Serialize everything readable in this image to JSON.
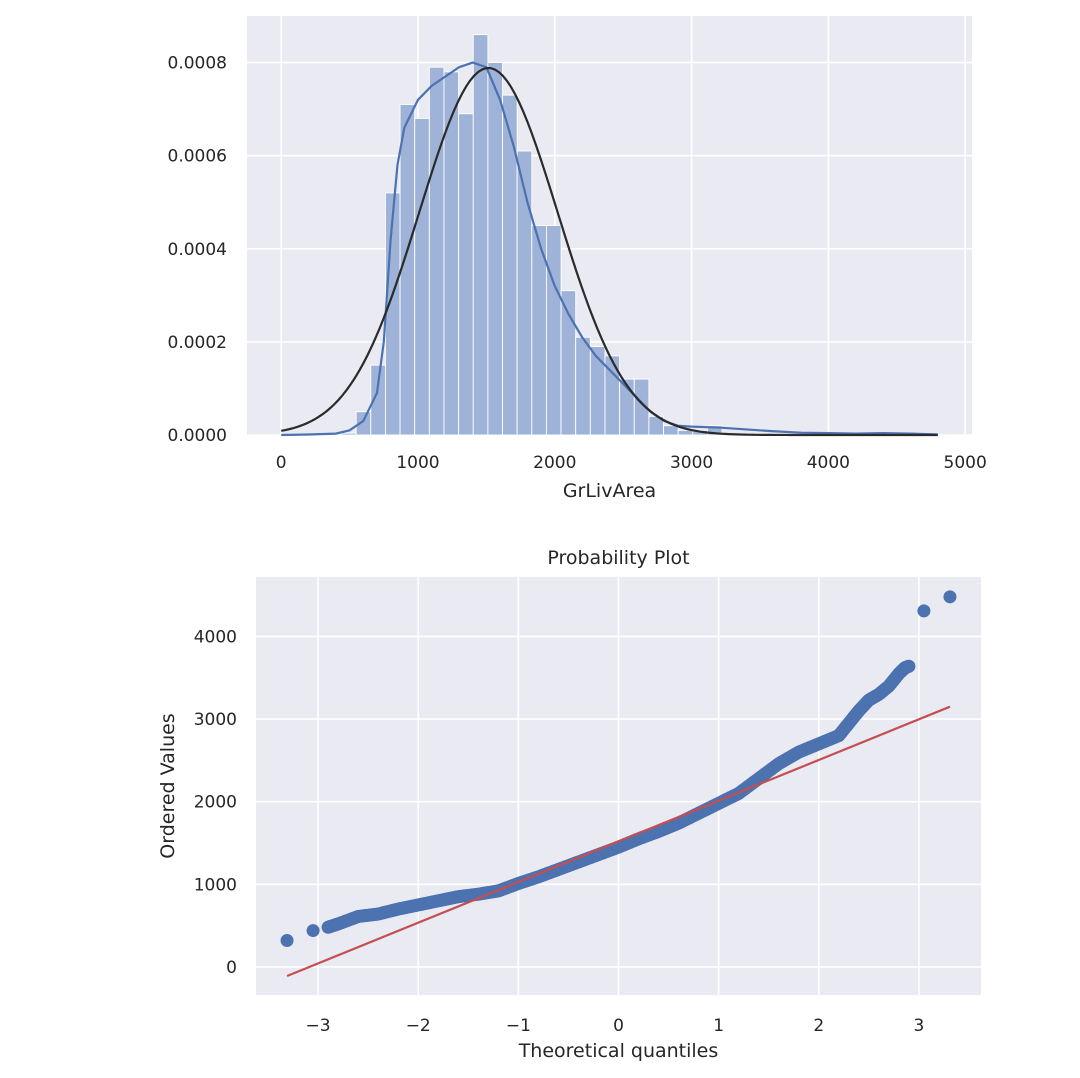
{
  "chart_data": [
    {
      "type": "histogram",
      "title": "",
      "xlabel": "GrLivArea",
      "ylabel": "",
      "xlim": [
        -250,
        5050
      ],
      "ylim": [
        0,
        0.0009
      ],
      "x_ticks": [
        {
          "value": 0,
          "label": "0"
        },
        {
          "value": 1000,
          "label": "1000"
        },
        {
          "value": 2000,
          "label": "2000"
        },
        {
          "value": 3000,
          "label": "3000"
        },
        {
          "value": 4000,
          "label": "4000"
        },
        {
          "value": 5000,
          "label": "5000"
        }
      ],
      "y_ticks": [
        {
          "value": 0,
          "label": "0.0000"
        },
        {
          "value": 0.0002,
          "label": "0.0002"
        },
        {
          "value": 0.0004,
          "label": "0.0004"
        },
        {
          "value": 0.0006,
          "label": "0.0006"
        },
        {
          "value": 0.0008,
          "label": "0.0008"
        }
      ],
      "grid": true,
      "bin_width": 107,
      "bins": [
        {
          "x0": 334,
          "density": 2e-06
        },
        {
          "x0": 441,
          "density": 4e-06
        },
        {
          "x0": 548,
          "density": 5e-05
        },
        {
          "x0": 655,
          "density": 0.00015
        },
        {
          "x0": 762,
          "density": 0.00052
        },
        {
          "x0": 869,
          "density": 0.00071
        },
        {
          "x0": 976,
          "density": 0.00068
        },
        {
          "x0": 1083,
          "density": 0.00079
        },
        {
          "x0": 1190,
          "density": 0.00078
        },
        {
          "x0": 1297,
          "density": 0.00069
        },
        {
          "x0": 1404,
          "density": 0.00086
        },
        {
          "x0": 1511,
          "density": 0.0008
        },
        {
          "x0": 1618,
          "density": 0.00073
        },
        {
          "x0": 1725,
          "density": 0.00061
        },
        {
          "x0": 1832,
          "density": 0.00045
        },
        {
          "x0": 1939,
          "density": 0.00045
        },
        {
          "x0": 2046,
          "density": 0.00031
        },
        {
          "x0": 2153,
          "density": 0.00021
        },
        {
          "x0": 2260,
          "density": 0.00019
        },
        {
          "x0": 2367,
          "density": 0.00017
        },
        {
          "x0": 2474,
          "density": 0.00012
        },
        {
          "x0": 2581,
          "density": 0.00012
        },
        {
          "x0": 2688,
          "density": 4e-05
        },
        {
          "x0": 2795,
          "density": 2e-05
        },
        {
          "x0": 2902,
          "density": 1e-05
        },
        {
          "x0": 3009,
          "density": 1e-05
        },
        {
          "x0": 3116,
          "density": 2e-05
        },
        {
          "x0": 3223,
          "density": 3e-06
        },
        {
          "x0": 3330,
          "density": 3e-06
        },
        {
          "x0": 3437,
          "density": 3e-06
        },
        {
          "x0": 3544,
          "density": 1e-06
        },
        {
          "x0": 4300,
          "density": 2e-06
        },
        {
          "x0": 4407,
          "density": 2e-06
        }
      ],
      "series": [
        {
          "kind": "kde",
          "x": [
            0,
            200,
            400,
            500,
            600,
            700,
            750,
            800,
            850,
            900,
            1000,
            1100,
            1200,
            1300,
            1400,
            1500,
            1600,
            1700,
            1800,
            1900,
            2000,
            2100,
            2200,
            2300,
            2400,
            2500,
            2600,
            2700,
            2800,
            2900,
            3000,
            3200,
            3400,
            3600,
            3800,
            4000,
            4200,
            4400,
            4600,
            4800
          ],
          "y": [
            0,
            1e-06,
            3e-06,
            1e-05,
            3e-05,
            9e-05,
            0.0002,
            0.00042,
            0.00058,
            0.00066,
            0.00072,
            0.00075,
            0.00077,
            0.00079,
            0.0008,
            0.00079,
            0.00072,
            0.00062,
            0.0005,
            0.0004,
            0.00032,
            0.00026,
            0.00021,
            0.00017,
            0.00014,
            0.00011,
            8e-05,
            5e-05,
            3e-05,
            2e-05,
            1.8e-05,
            1.6e-05,
            1.2e-05,
            8e-06,
            5e-06,
            4e-06,
            3e-06,
            4e-06,
            3e-06,
            1e-06
          ]
        },
        {
          "kind": "norm_fit",
          "mean": 1515,
          "sd": 506,
          "x_range": [
            0,
            4800
          ]
        }
      ],
      "colors": {
        "background": "#eaeaf2",
        "grid": "#ffffff",
        "bars": "#9eb3d7",
        "kde": "#4c72b0",
        "norm_fit": "#2b2b2b"
      }
    },
    {
      "type": "scatter",
      "title": "Probability Plot",
      "xlabel": "Theoretical quantiles",
      "ylabel": "Ordered Values",
      "xlim": [
        -3.62,
        3.62
      ],
      "ylim": [
        -340,
        4720
      ],
      "x_ticks": [
        {
          "value": -3,
          "label": "−3"
        },
        {
          "value": -2,
          "label": "−2"
        },
        {
          "value": -1,
          "label": "−1"
        },
        {
          "value": 0,
          "label": "0"
        },
        {
          "value": 1,
          "label": "1"
        },
        {
          "value": 2,
          "label": "2"
        },
        {
          "value": 3,
          "label": "3"
        }
      ],
      "y_ticks": [
        {
          "value": 0,
          "label": "0"
        },
        {
          "value": 1000,
          "label": "1000"
        },
        {
          "value": 2000,
          "label": "2000"
        },
        {
          "value": 3000,
          "label": "3000"
        },
        {
          "value": 4000,
          "label": "4000"
        }
      ],
      "grid": true,
      "points_curve": {
        "x": [
          -3.31,
          -3.05,
          -2.9,
          -2.8,
          -2.6,
          -2.4,
          -2.2,
          -2.0,
          -1.8,
          -1.6,
          -1.4,
          -1.2,
          -1.0,
          -0.8,
          -0.6,
          -0.4,
          -0.2,
          0.0,
          0.2,
          0.4,
          0.6,
          0.8,
          1.0,
          1.2,
          1.4,
          1.6,
          1.8,
          2.0,
          2.2,
          2.3,
          2.4,
          2.5,
          2.6,
          2.7,
          2.8,
          2.86,
          2.9
        ],
        "y": [
          320,
          440,
          480,
          520,
          610,
          640,
          700,
          750,
          800,
          850,
          880,
          920,
          1010,
          1090,
          1180,
          1270,
          1360,
          1450,
          1550,
          1640,
          1740,
          1860,
          1980,
          2100,
          2280,
          2460,
          2600,
          2700,
          2800,
          2950,
          3100,
          3230,
          3300,
          3400,
          3550,
          3620,
          3640
        ]
      },
      "outliers": [
        {
          "x": 3.05,
          "y": 4310
        },
        {
          "x": 3.31,
          "y": 4480
        }
      ],
      "fit_line": {
        "x": [
          -3.31,
          3.31
        ],
        "y": [
          -110,
          3150
        ]
      },
      "colors": {
        "background": "#eaeaf2",
        "grid": "#ffffff",
        "points": "#4c72b0",
        "fit_line": "#c44e52"
      }
    }
  ]
}
